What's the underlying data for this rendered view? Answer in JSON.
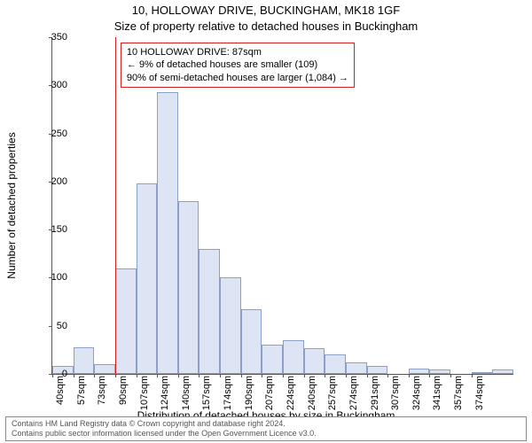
{
  "title_line1": "10, HOLLOWAY DRIVE, BUCKINGHAM, MK18 1GF",
  "title_line2": "Size of property relative to detached houses in Buckingham",
  "ylabel": "Number of detached properties",
  "xlabel": "Distribution of detached houses by size in Buckingham",
  "chart": {
    "type": "histogram",
    "background_color": "#ffffff",
    "axis_color": "#555555",
    "bar_fill": "#dde5f4",
    "bar_border": "#8aa0c8",
    "marker_color": "#d62020",
    "ylim": [
      0,
      350
    ],
    "ytick_step": 50,
    "yticks": [
      0,
      50,
      100,
      150,
      200,
      250,
      300,
      350
    ],
    "x_labels": [
      "40sqm",
      "57sqm",
      "73sqm",
      "90sqm",
      "107sqm",
      "124sqm",
      "140sqm",
      "157sqm",
      "174sqm",
      "190sqm",
      "207sqm",
      "224sqm",
      "240sqm",
      "257sqm",
      "274sqm",
      "291sqm",
      "307sqm",
      "324sqm",
      "341sqm",
      "357sqm",
      "374sqm"
    ],
    "values": [
      8,
      28,
      10,
      110,
      198,
      293,
      180,
      130,
      100,
      67,
      30,
      35,
      27,
      20,
      12,
      8,
      0,
      6,
      5,
      0,
      2,
      5
    ],
    "marker_bin_index": 3,
    "annot_lines": [
      "10 HOLLOWAY DRIVE: 87sqm",
      "← 9% of detached houses are smaller (109)",
      "90% of semi-detached houses are larger (1,084) →"
    ],
    "label_fontsize": 12,
    "tick_fontsize": 11
  },
  "footer": {
    "line1": "Contains HM Land Registry data © Crown copyright and database right 2024.",
    "line2": "Contains public sector information licensed under the Open Government Licence v3.0."
  }
}
